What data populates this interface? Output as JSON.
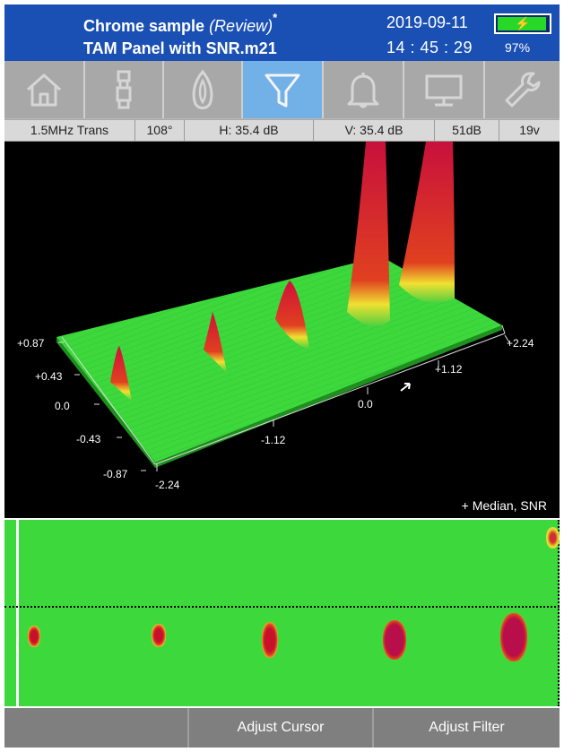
{
  "header": {
    "title_main": "Chrome sample",
    "title_mode": "(Review)",
    "title_modified": "*",
    "subtitle": "TAM Panel with SNR.m21",
    "date": "2019-09-11",
    "time": "14 : 45 : 29",
    "battery_percent_text": "97%",
    "battery_level": 0.97,
    "battery_icon": "charging-bolt-icon"
  },
  "toolbar": {
    "items": [
      {
        "name": "home",
        "icon": "home-icon",
        "active": false
      },
      {
        "name": "probe",
        "icon": "probe-icon",
        "active": false
      },
      {
        "name": "material",
        "icon": "material-icon",
        "active": false
      },
      {
        "name": "filter",
        "icon": "filter-icon",
        "active": true
      },
      {
        "name": "alarm",
        "icon": "bell-icon",
        "active": false
      },
      {
        "name": "display",
        "icon": "monitor-icon",
        "active": false
      },
      {
        "name": "settings",
        "icon": "wrench-icon",
        "active": false
      }
    ]
  },
  "status": {
    "probe": "1.5MHz Trans",
    "angle": "108°",
    "h_gain": "H: 35.4 dB",
    "v_gain": "V: 35.4 dB",
    "gain": "51dB",
    "voltage": "19v"
  },
  "plot3d": {
    "legend": "+ Median, SNR",
    "left_axis_ticks": [
      "+0.87",
      "+0.43",
      "0.0",
      "-0.43",
      "-0.87"
    ],
    "front_axis_ticks": [
      "-2.24",
      "-1.12",
      "0.0",
      "+1.12",
      "+2.24"
    ]
  },
  "cscan": {
    "spots": 5
  },
  "bottom": {
    "left_label": "",
    "adjust_cursor": "Adjust Cursor",
    "adjust_filter": "Adjust Filter"
  },
  "colors": {
    "header_bg": "#1a50b4",
    "active_tool": "#72b0e8",
    "surface_green": "#3cd83c",
    "peak_red": "#d0103a"
  }
}
